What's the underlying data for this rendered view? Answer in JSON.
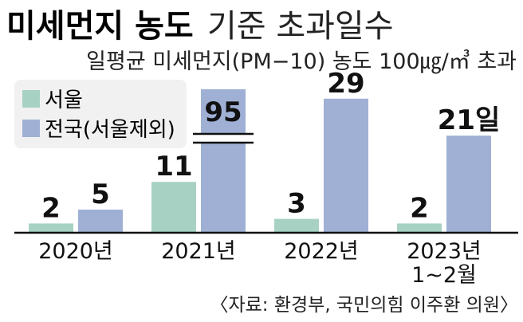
{
  "header": {
    "title_bold": "미세먼지 농도",
    "title_light": "기준 초과일수",
    "subtitle": "일평균 미세먼지(PM−10) 농도 100㎍/㎥ 초과"
  },
  "colors": {
    "seoul": "#a7d2c3",
    "national": "#9fb0d4",
    "legend_bg": "#f1f1f1",
    "text": "#111111"
  },
  "chart_data": {
    "type": "bar",
    "title": "미세먼지 농도 기준 초과일수",
    "subtitle": "일평균 미세먼지(PM−10) 농도 100㎍/㎥ 초과",
    "categories": [
      "2020년",
      "2021년",
      "2022년",
      "2023년\n1~2월"
    ],
    "series": [
      {
        "name": "서울",
        "values": [
          2,
          11,
          3,
          2
        ]
      },
      {
        "name": "전국(서울제외)",
        "values": [
          5,
          95,
          29,
          21
        ]
      }
    ],
    "value_labels": [
      [
        "2",
        "11",
        "3",
        "2"
      ],
      [
        "5",
        "95",
        "29",
        "21일"
      ]
    ],
    "axis_break": true,
    "legend": "top-left",
    "grid": false
  },
  "legend": {
    "items": [
      {
        "label": "서울"
      },
      {
        "label": "전국(서울제외)"
      }
    ]
  },
  "source": "〈자료: 환경부, 국민의힘 이주환 의원〉"
}
